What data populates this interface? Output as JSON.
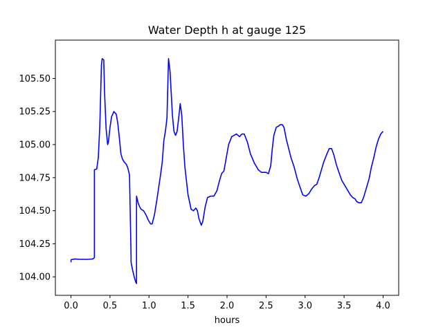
{
  "chart_data": {
    "type": "line",
    "title": "Water Depth h at gauge 125",
    "xlabel": "hours",
    "ylabel": "",
    "xlim": [
      -0.2,
      4.2
    ],
    "ylim": [
      103.86,
      105.79
    ],
    "xticks": [
      0.0,
      0.5,
      1.0,
      1.5,
      2.0,
      2.5,
      3.0,
      3.5,
      4.0
    ],
    "xtick_labels": [
      "0.0",
      "0.5",
      "1.0",
      "1.5",
      "2.0",
      "2.5",
      "3.0",
      "3.5",
      "4.0"
    ],
    "yticks": [
      104.0,
      104.25,
      104.5,
      104.75,
      105.0,
      105.25,
      105.5
    ],
    "ytick_labels": [
      "104.00",
      "104.25",
      "104.50",
      "104.75",
      "105.00",
      "105.25",
      "105.50"
    ],
    "grid": false,
    "line_color": "#0000ff",
    "series": [
      {
        "x": [
          0.0,
          0.001,
          0.05,
          0.1,
          0.2,
          0.28,
          0.3,
          0.3,
          0.33,
          0.35,
          0.37,
          0.39,
          0.4,
          0.42,
          0.43,
          0.45,
          0.47,
          0.48,
          0.5,
          0.52,
          0.55,
          0.58,
          0.6,
          0.62,
          0.64,
          0.66,
          0.68,
          0.71,
          0.73,
          0.75,
          0.77,
          0.77,
          0.79,
          0.81,
          0.83,
          0.84,
          0.84,
          0.86,
          0.88,
          0.9,
          0.93,
          0.96,
          0.99,
          1.02,
          1.04,
          1.07,
          1.1,
          1.13,
          1.15,
          1.17,
          1.19,
          1.21,
          1.23,
          1.25,
          1.27,
          1.3,
          1.32,
          1.34,
          1.36,
          1.38,
          1.4,
          1.42,
          1.44,
          1.46,
          1.5,
          1.54,
          1.57,
          1.6,
          1.62,
          1.64,
          1.67,
          1.69,
          1.72,
          1.75,
          1.79,
          1.83,
          1.87,
          1.9,
          1.93,
          1.96,
          1.99,
          2.02,
          2.06,
          2.09,
          2.12,
          2.16,
          2.19,
          2.22,
          2.26,
          2.3,
          2.35,
          2.4,
          2.44,
          2.47,
          2.5,
          2.53,
          2.56,
          2.58,
          2.6,
          2.63,
          2.66,
          2.68,
          2.71,
          2.73,
          2.76,
          2.79,
          2.82,
          2.86,
          2.9,
          2.94,
          2.97,
          3.01,
          3.05,
          3.08,
          3.12,
          3.15,
          3.18,
          3.21,
          3.24,
          3.28,
          3.31,
          3.34,
          3.37,
          3.4,
          3.44,
          3.47,
          3.5,
          3.54,
          3.58,
          3.61,
          3.64,
          3.66,
          3.69,
          3.72,
          3.75,
          3.78,
          3.82,
          3.85,
          3.88,
          3.91,
          3.94,
          3.97,
          4.0
        ],
        "y": [
          104.11,
          104.13,
          104.135,
          104.133,
          104.132,
          104.135,
          104.145,
          104.81,
          104.815,
          104.9,
          105.15,
          105.6,
          105.65,
          105.64,
          105.4,
          105.12,
          105.0,
          105.02,
          105.13,
          105.21,
          105.25,
          105.23,
          105.16,
          105.05,
          104.93,
          104.89,
          104.87,
          104.85,
          104.82,
          104.77,
          104.15,
          104.11,
          104.05,
          104.0,
          103.96,
          103.95,
          104.61,
          104.56,
          104.53,
          104.51,
          104.5,
          104.47,
          104.43,
          104.4,
          104.4,
          104.47,
          104.58,
          104.7,
          104.78,
          104.87,
          105.03,
          105.1,
          105.2,
          105.65,
          105.55,
          105.22,
          105.1,
          105.07,
          105.1,
          105.2,
          105.31,
          105.22,
          105.0,
          104.83,
          104.62,
          104.51,
          104.5,
          104.52,
          104.5,
          104.44,
          104.39,
          104.42,
          104.53,
          104.6,
          104.61,
          104.61,
          104.65,
          104.72,
          104.78,
          104.8,
          104.9,
          105.0,
          105.06,
          105.07,
          105.08,
          105.06,
          105.08,
          105.08,
          105.02,
          104.93,
          104.86,
          104.81,
          104.79,
          104.79,
          104.79,
          104.78,
          104.84,
          104.97,
          105.07,
          105.13,
          105.14,
          105.15,
          105.15,
          105.13,
          105.04,
          104.97,
          104.9,
          104.83,
          104.74,
          104.67,
          104.62,
          104.61,
          104.63,
          104.66,
          104.69,
          104.7,
          104.75,
          104.81,
          104.87,
          104.93,
          104.97,
          104.97,
          104.92,
          104.85,
          104.78,
          104.73,
          104.7,
          104.66,
          104.62,
          104.6,
          104.59,
          104.57,
          104.56,
          104.56,
          104.6,
          104.66,
          104.74,
          104.83,
          104.9,
          104.98,
          105.04,
          105.08,
          105.1
        ]
      }
    ]
  }
}
